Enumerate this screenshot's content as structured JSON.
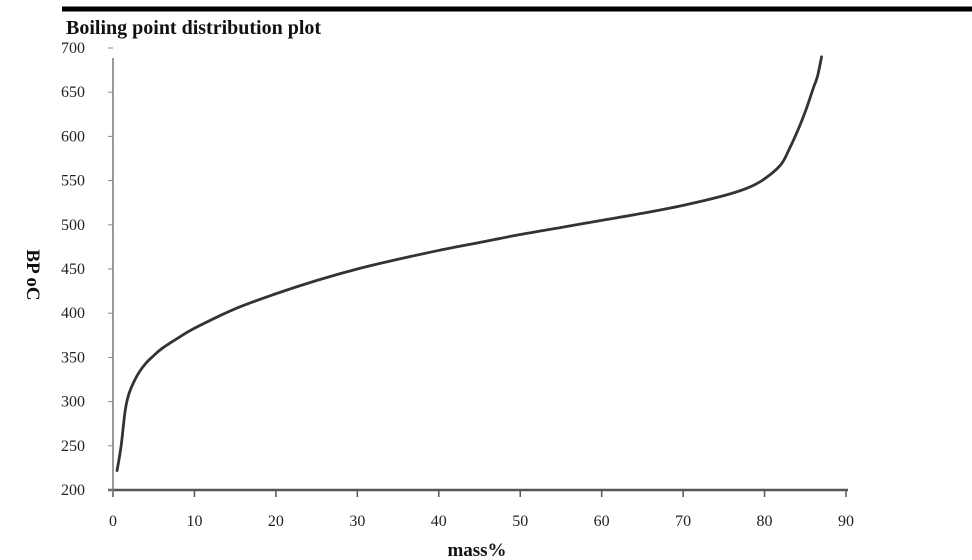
{
  "chart_data": {
    "type": "line",
    "title": "Boiling point distribution plot",
    "xlabel": "mass%",
    "ylabel": "BP oC",
    "xlim": [
      0,
      90
    ],
    "ylim": [
      200,
      700
    ],
    "x_ticks": [
      "0",
      "10",
      "20",
      "30",
      "40",
      "50",
      "60",
      "70",
      "80",
      "90"
    ],
    "y_ticks": [
      "200",
      "250",
      "300",
      "350",
      "400",
      "450",
      "500",
      "550",
      "600",
      "650",
      "700"
    ],
    "grid": false,
    "legend": "none",
    "line_color": "#333333",
    "series": [
      {
        "x": [
          0.5,
          1,
          1.5,
          2,
          3,
          4,
          5,
          6,
          8,
          10,
          15,
          20,
          25,
          30,
          35,
          40,
          45,
          50,
          55,
          60,
          65,
          70,
          75,
          78,
          80,
          82,
          83,
          84,
          85,
          86,
          86.5,
          87
        ],
        "y": [
          222,
          250,
          290,
          310,
          330,
          343,
          352,
          360,
          372,
          383,
          405,
          422,
          437,
          450,
          461,
          471,
          480,
          489,
          497,
          505,
          513,
          522,
          533,
          542,
          552,
          568,
          585,
          605,
          628,
          655,
          668,
          690
        ]
      }
    ]
  }
}
